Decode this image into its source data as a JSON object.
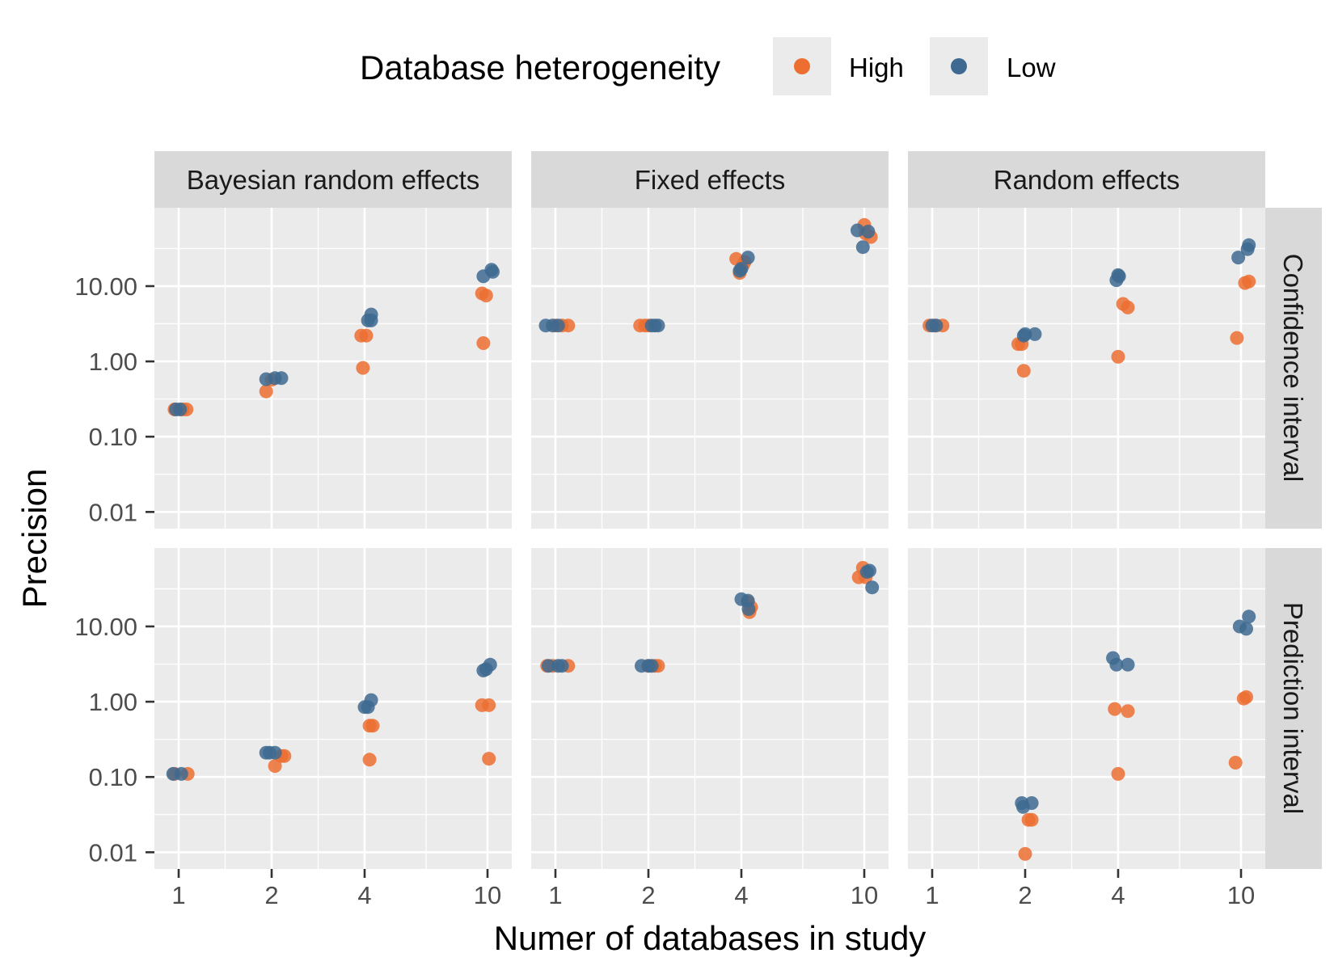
{
  "chart_data": {
    "type": "scatter",
    "layout": "facet_grid",
    "xlabel": "Numer of databases in study",
    "ylabel": "Precision",
    "x_scale": "log",
    "y_scale": "log",
    "x_ticks": [
      1,
      2,
      4,
      10
    ],
    "x_tick_labels": [
      "1",
      "2",
      "4",
      "10"
    ],
    "y_ticks": [
      0.01,
      0.1,
      1,
      10
    ],
    "y_tick_labels": [
      "0.01",
      "0.10",
      "1.00",
      "10.00"
    ],
    "ylim": [
      0.006,
      110
    ],
    "legend": {
      "title": "Database heterogeneity",
      "position": "top",
      "entries": [
        {
          "label": "High",
          "color": "#ec6f31"
        },
        {
          "label": "Low",
          "color": "#3e6a91"
        }
      ]
    },
    "columns": [
      "Bayesian random effects",
      "Fixed effects",
      "Random effects"
    ],
    "rows": [
      "Confidence interval",
      "Prediction interval"
    ],
    "grid": true,
    "point_opacity": 0.85,
    "facets": [
      {
        "column": "Bayesian random effects",
        "row": "Confidence interval",
        "series": [
          {
            "name": "High",
            "points": [
              [
                0.97,
                0.23
              ],
              [
                1.03,
                0.23
              ],
              [
                1.06,
                0.23
              ],
              [
                1.92,
                0.4
              ],
              [
                2.0,
                0.57
              ],
              [
                3.9,
                2.2
              ],
              [
                4.05,
                2.2
              ],
              [
                3.95,
                0.82
              ],
              [
                9.6,
                8.0
              ],
              [
                9.9,
                7.5
              ],
              [
                9.7,
                1.75
              ]
            ]
          },
          {
            "name": "Low",
            "points": [
              [
                0.98,
                0.23
              ],
              [
                1.01,
                0.23
              ],
              [
                1.92,
                0.58
              ],
              [
                2.05,
                0.6
              ],
              [
                2.15,
                0.6
              ],
              [
                4.1,
                3.5
              ],
              [
                4.2,
                4.2
              ],
              [
                4.2,
                3.5
              ],
              [
                9.7,
                13.5
              ],
              [
                10.3,
                16.5
              ],
              [
                10.4,
                15.5
              ]
            ]
          }
        ]
      },
      {
        "column": "Fixed effects",
        "row": "Confidence interval",
        "series": [
          {
            "name": "High",
            "points": [
              [
                1.0,
                3.0
              ],
              [
                1.05,
                3.0
              ],
              [
                1.1,
                3.0
              ],
              [
                1.88,
                3.0
              ],
              [
                1.95,
                3.0
              ],
              [
                2.0,
                3.0
              ],
              [
                3.85,
                23
              ],
              [
                3.95,
                15
              ],
              [
                4.05,
                19
              ],
              [
                4.1,
                21
              ],
              [
                10.0,
                65
              ],
              [
                10.1,
                50
              ],
              [
                10.5,
                45
              ]
            ]
          },
          {
            "name": "Low",
            "points": [
              [
                0.93,
                3.0
              ],
              [
                0.98,
                3.0
              ],
              [
                1.02,
                3.0
              ],
              [
                2.05,
                3.0
              ],
              [
                2.1,
                3.0
              ],
              [
                2.15,
                3.0
              ],
              [
                3.95,
                16
              ],
              [
                4.0,
                17
              ],
              [
                4.2,
                24
              ],
              [
                9.5,
                55
              ],
              [
                9.9,
                33
              ],
              [
                10.3,
                53
              ]
            ]
          }
        ]
      },
      {
        "column": "Random effects",
        "row": "Confidence interval",
        "series": [
          {
            "name": "High",
            "points": [
              [
                0.98,
                3.0
              ],
              [
                1.02,
                3.0
              ],
              [
                1.08,
                3.0
              ],
              [
                1.9,
                1.7
              ],
              [
                1.95,
                1.7
              ],
              [
                1.98,
                0.75
              ],
              [
                4.0,
                1.15
              ],
              [
                4.15,
                5.8
              ],
              [
                4.3,
                5.2
              ],
              [
                9.7,
                2.05
              ],
              [
                10.3,
                11
              ],
              [
                10.6,
                11.5
              ]
            ]
          },
          {
            "name": "Low",
            "points": [
              [
                1.0,
                3.0
              ],
              [
                1.03,
                3.0
              ],
              [
                1.98,
                2.2
              ],
              [
                2.0,
                2.3
              ],
              [
                2.15,
                2.3
              ],
              [
                3.95,
                12
              ],
              [
                4.0,
                14
              ],
              [
                4.03,
                13.5
              ],
              [
                9.8,
                24
              ],
              [
                10.5,
                31
              ],
              [
                10.6,
                35
              ]
            ]
          }
        ]
      },
      {
        "column": "Bayesian random effects",
        "row": "Prediction interval",
        "series": [
          {
            "name": "High",
            "points": [
              [
                0.97,
                0.11
              ],
              [
                1.07,
                0.11
              ],
              [
                2.05,
                0.14
              ],
              [
                2.15,
                0.19
              ],
              [
                2.2,
                0.19
              ],
              [
                4.15,
                0.48
              ],
              [
                4.25,
                0.48
              ],
              [
                4.15,
                0.17
              ],
              [
                9.6,
                0.9
              ],
              [
                10.1,
                0.9
              ],
              [
                10.1,
                0.175
              ]
            ]
          },
          {
            "name": "Low",
            "points": [
              [
                0.96,
                0.11
              ],
              [
                1.02,
                0.11
              ],
              [
                1.92,
                0.21
              ],
              [
                1.97,
                0.21
              ],
              [
                2.05,
                0.21
              ],
              [
                4.0,
                0.85
              ],
              [
                4.1,
                0.85
              ],
              [
                4.2,
                1.05
              ],
              [
                9.7,
                2.6
              ],
              [
                9.9,
                2.7
              ],
              [
                10.2,
                3.1
              ]
            ]
          }
        ]
      },
      {
        "column": "Fixed effects",
        "row": "Prediction interval",
        "series": [
          {
            "name": "High",
            "points": [
              [
                0.94,
                3.0
              ],
              [
                0.98,
                3.0
              ],
              [
                1.1,
                3.0
              ],
              [
                2.0,
                3.0
              ],
              [
                2.1,
                3.0
              ],
              [
                2.15,
                3.0
              ],
              [
                4.2,
                21
              ],
              [
                4.25,
                15.5
              ],
              [
                4.3,
                18
              ],
              [
                9.6,
                45
              ],
              [
                9.9,
                60
              ],
              [
                10.1,
                45
              ]
            ]
          },
          {
            "name": "Low",
            "points": [
              [
                0.95,
                3.0
              ],
              [
                1.02,
                3.0
              ],
              [
                1.05,
                3.0
              ],
              [
                1.9,
                3.0
              ],
              [
                2.0,
                3.0
              ],
              [
                2.05,
                3.0
              ],
              [
                4.0,
                23
              ],
              [
                4.2,
                22
              ],
              [
                4.22,
                17
              ],
              [
                10.2,
                53
              ],
              [
                10.4,
                55
              ],
              [
                10.6,
                33
              ]
            ]
          }
        ]
      },
      {
        "column": "Random effects",
        "row": "Prediction interval",
        "series": [
          {
            "name": "High",
            "points": [
              [
                2.0,
                0.0095
              ],
              [
                2.05,
                0.027
              ],
              [
                2.1,
                0.027
              ],
              [
                3.9,
                0.8
              ],
              [
                4.0,
                0.11
              ],
              [
                4.3,
                0.75
              ],
              [
                9.6,
                0.155
              ],
              [
                10.2,
                1.1
              ],
              [
                10.4,
                1.15
              ]
            ]
          },
          {
            "name": "Low",
            "points": [
              [
                1.95,
                0.045
              ],
              [
                1.97,
                0.04
              ],
              [
                2.1,
                0.045
              ],
              [
                3.85,
                3.8
              ],
              [
                3.95,
                3.1
              ],
              [
                4.3,
                3.1
              ],
              [
                9.9,
                10
              ],
              [
                10.4,
                9.3
              ],
              [
                10.6,
                13.5
              ]
            ]
          }
        ]
      }
    ]
  }
}
